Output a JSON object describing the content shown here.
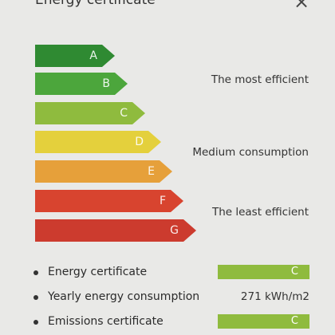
{
  "header": {
    "title": "Energy certificate",
    "close": "×"
  },
  "ratings": [
    {
      "label": "A",
      "color": "#2f8a32"
    },
    {
      "label": "B",
      "color": "#4ca63c"
    },
    {
      "label": "C",
      "color": "#8fbb3e"
    },
    {
      "label": "D",
      "color": "#e4d03c"
    },
    {
      "label": "E",
      "color": "#e6a03a"
    },
    {
      "label": "F",
      "color": "#d8442f"
    },
    {
      "label": "G",
      "color": "#cc3b2e"
    }
  ],
  "scale_notes": [
    "The most efficient",
    "Medium consumption",
    "The least efficient"
  ],
  "details": [
    {
      "label": "Energy certificate",
      "value": "C"
    },
    {
      "label": "Yearly energy consumption",
      "value": "271 kWh/m2"
    },
    {
      "label": "Emissions certificate",
      "value": "C"
    }
  ]
}
